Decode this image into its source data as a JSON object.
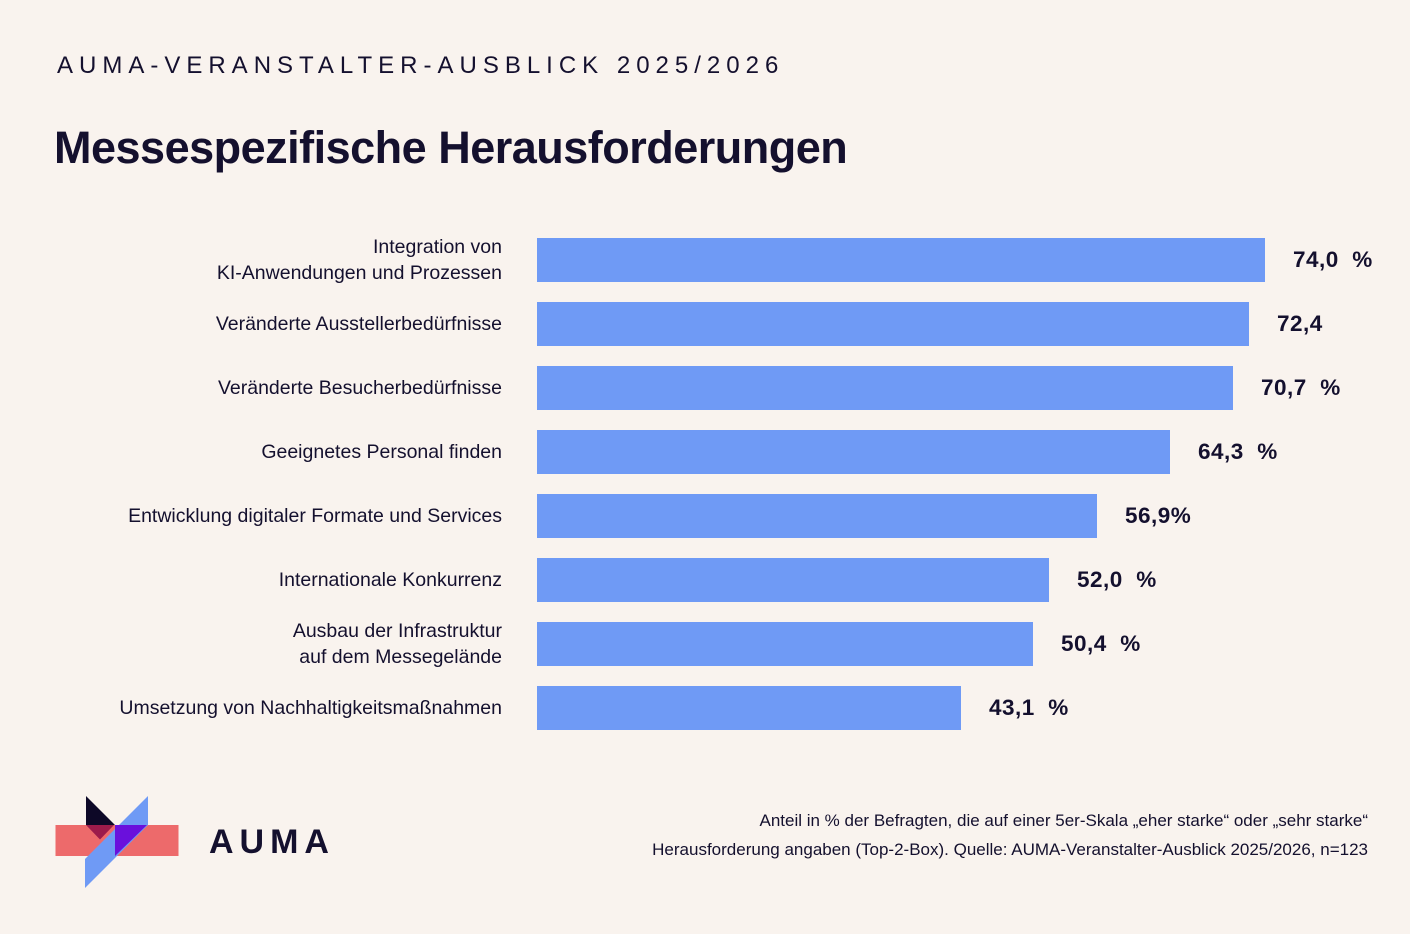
{
  "page": {
    "eyebrow": "AUMA-VERANSTALTER-AUSBLICK 2025/2026",
    "title": "Messespezifische Herausforderungen",
    "background_color": "#f9f3ee",
    "ink_color": "#14102e"
  },
  "chart_data": {
    "type": "bar",
    "orientation": "horizontal",
    "title": "Messespezifische Herausforderungen",
    "xlabel": "",
    "ylabel": "",
    "unit": "%",
    "xlim": [
      0,
      80
    ],
    "grid": false,
    "legend": false,
    "bar_color": "#6f9af5",
    "categories": [
      "Integration von\nKI-Anwendungen und Prozessen",
      "Veränderte Ausstellerbedürfnisse",
      "Veränderte Besucherbedürfnisse",
      "Geeignetes Personal finden",
      "Entwicklung digitaler Formate und Services",
      "Internationale Konkurrenz",
      "Ausbau der Infrastruktur\nauf dem Messegelände",
      "Umsetzung von Nachhaltigkeitsmaßnahmen"
    ],
    "values": [
      74.0,
      72.4,
      70.7,
      64.3,
      56.9,
      52.0,
      50.4,
      43.1
    ],
    "value_labels": [
      "74,0  %",
      "72,4",
      "70,7  %",
      "64,3  %",
      "56,9%",
      "52,0  %",
      "50,4  %",
      "43,1  %"
    ]
  },
  "footer": {
    "note_line1": "Anteil in % der Befragten, die auf einer 5er-Skala „eher starke“ oder „sehr starke“",
    "note_line2": "Herausforderung angaben (Top-2-Box). Quelle: AUMA-Veranstalter-Ausblick 2025/2026, n=123",
    "logo_text": "AUMA",
    "logo_colors": {
      "salmon": "#ed6a6b",
      "navy": "#0d0827",
      "maroon": "#9c1b4b",
      "violet": "#6a10dc",
      "blue": "#6f9af5"
    }
  }
}
